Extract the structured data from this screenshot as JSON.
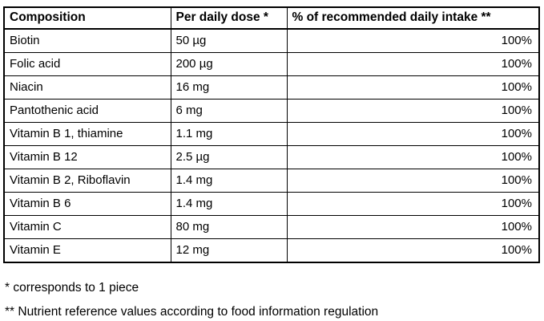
{
  "table": {
    "headers": {
      "composition": "Composition",
      "dose": "Per daily dose *",
      "intake": "% of recommended daily intake **"
    },
    "rows": [
      {
        "name": "Biotin",
        "dose": "50 µg",
        "intake": "100%"
      },
      {
        "name": "Folic acid",
        "dose": "200 µg",
        "intake": "100%"
      },
      {
        "name": "Niacin",
        "dose": "16 mg",
        "intake": "100%"
      },
      {
        "name": "Pantothenic acid",
        "dose": "6 mg",
        "intake": "100%"
      },
      {
        "name": "Vitamin B 1, thiamine",
        "dose": "1.1 mg",
        "intake": "100%"
      },
      {
        "name": "Vitamin B 12",
        "dose": "2.5 µg",
        "intake": "100%"
      },
      {
        "name": "Vitamin B 2, Riboflavin",
        "dose": "1.4 mg",
        "intake": "100%"
      },
      {
        "name": "Vitamin B 6",
        "dose": "1.4 mg",
        "intake": "100%"
      },
      {
        "name": "Vitamin C",
        "dose": "80 mg",
        "intake": "100%"
      },
      {
        "name": "Vitamin E",
        "dose": "12 mg",
        "intake": "100%"
      }
    ]
  },
  "footnotes": {
    "first": "* corresponds to 1 piece",
    "second": "** Nutrient reference values according to food information regulation"
  },
  "colors": {
    "text": "#000000",
    "border": "#000000",
    "background": "#ffffff"
  }
}
